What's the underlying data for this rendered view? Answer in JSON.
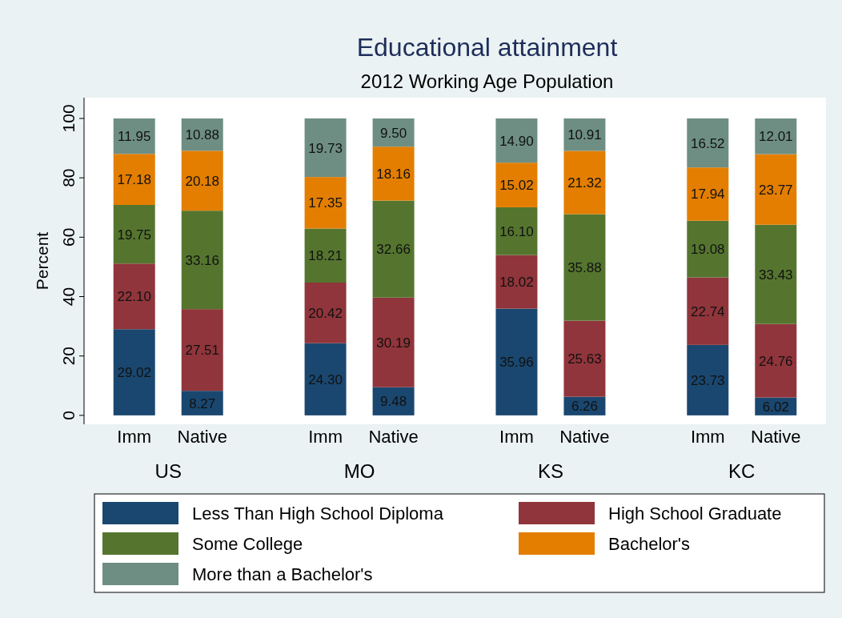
{
  "chart_data": {
    "type": "bar",
    "title": "Educational attainment",
    "subtitle": "2012 Working Age Population",
    "ylabel": "Percent",
    "categories": [
      "Imm",
      "Native",
      "Imm",
      "Native",
      "Imm",
      "Native",
      "Imm",
      "Native"
    ],
    "annotations": [
      "US",
      "MO",
      "KS",
      "KC"
    ],
    "stacked": true,
    "legend": "bottom",
    "ylim": [
      -3,
      107
    ],
    "yticks": [
      0,
      20,
      40,
      60,
      80,
      100
    ],
    "series": [
      {
        "name": "Less Than High School Diploma",
        "color": "#1a476f",
        "values": [
          29.02,
          8.27,
          24.3,
          9.48,
          35.96,
          6.26,
          23.73,
          6.02
        ],
        "value_labels": [
          "29.02",
          "8.27",
          "24.30",
          "9.48",
          "35.96",
          "6.26",
          "23.73",
          "6.02"
        ]
      },
      {
        "name": "High School Graduate",
        "color": "#90353b",
        "values": [
          22.1,
          27.51,
          20.42,
          30.19,
          18.02,
          25.63,
          22.74,
          24.76
        ],
        "value_labels": [
          "22.10",
          "27.51",
          "20.42",
          "30.19",
          "18.02",
          "25.63",
          "22.74",
          "24.76"
        ]
      },
      {
        "name": "Some College",
        "color": "#55752f",
        "values": [
          19.75,
          33.16,
          18.21,
          32.66,
          16.1,
          35.88,
          19.08,
          33.43
        ],
        "value_labels": [
          "19.75",
          "33.16",
          "18.21",
          "32.66",
          "16.10",
          "35.88",
          "19.08",
          "33.43"
        ]
      },
      {
        "name": "Bachelor's",
        "color": "#e37e00",
        "values": [
          17.18,
          20.18,
          17.35,
          18.16,
          15.02,
          21.32,
          17.94,
          23.77
        ],
        "value_labels": [
          "17.18",
          "20.18",
          "17.35",
          "18.16",
          "15.02",
          "21.32",
          "17.94",
          "23.77"
        ]
      },
      {
        "name": "More than a Bachelor's",
        "color": "#6e8e84",
        "values": [
          11.95,
          10.88,
          19.73,
          9.5,
          14.9,
          10.91,
          16.52,
          12.01
        ],
        "value_labels": [
          "11.95",
          "10.88",
          "19.73",
          "9.50",
          "14.90",
          "10.91",
          "16.52",
          "12.01"
        ]
      }
    ]
  }
}
